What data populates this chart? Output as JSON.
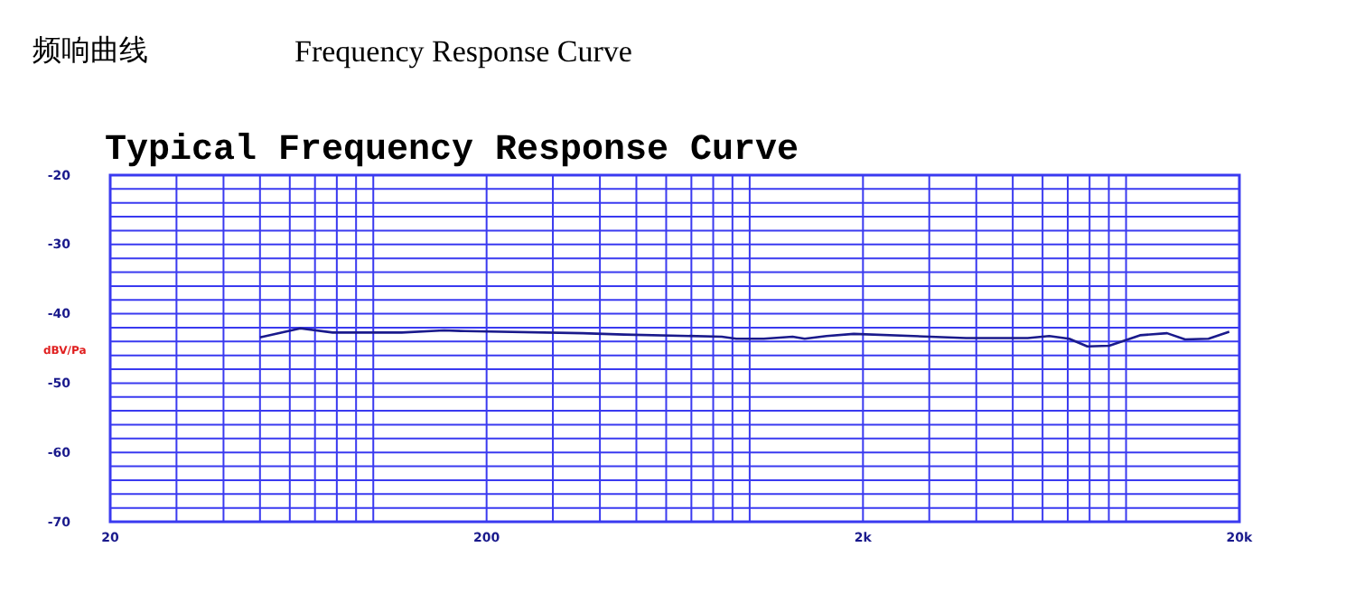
{
  "chart_data": {
    "type": "line",
    "title": "频响曲线",
    "subtitle": "Frequency Response Curve",
    "annotations": [
      "Typical Frequency Response Curve"
    ],
    "ylabel": "dBV/Pa",
    "log": "x",
    "grid": true,
    "marker": "none",
    "line_style": "solid",
    "xlim": [
      20,
      20000
    ],
    "ylim": [
      -70,
      -20
    ],
    "xticks": [
      {
        "value": 20,
        "label": "20"
      },
      {
        "value": 30,
        "label": null
      },
      {
        "value": 40,
        "label": null
      },
      {
        "value": 50,
        "label": null
      },
      {
        "value": 60,
        "label": null
      },
      {
        "value": 70,
        "label": null
      },
      {
        "value": 80,
        "label": null
      },
      {
        "value": 90,
        "label": null
      },
      {
        "value": 100,
        "label": null
      },
      {
        "value": 200,
        "label": "200"
      },
      {
        "value": 300,
        "label": null
      },
      {
        "value": 400,
        "label": null
      },
      {
        "value": 500,
        "label": null
      },
      {
        "value": 600,
        "label": null
      },
      {
        "value": 700,
        "label": null
      },
      {
        "value": 800,
        "label": null
      },
      {
        "value": 900,
        "label": null
      },
      {
        "value": 1000,
        "label": null
      },
      {
        "value": 2000,
        "label": "2k"
      },
      {
        "value": 3000,
        "label": null
      },
      {
        "value": 4000,
        "label": null
      },
      {
        "value": 5000,
        "label": null
      },
      {
        "value": 6000,
        "label": null
      },
      {
        "value": 7000,
        "label": null
      },
      {
        "value": 8000,
        "label": null
      },
      {
        "value": 9000,
        "label": null
      },
      {
        "value": 10000,
        "label": null
      },
      {
        "value": 20000,
        "label": "20k"
      }
    ],
    "yticks": [
      -70,
      {
        "value": -68,
        "label": null
      },
      {
        "value": -66,
        "label": null
      },
      {
        "value": -64,
        "label": null
      },
      {
        "value": -62,
        "label": null
      },
      -60,
      {
        "value": -58,
        "label": null
      },
      {
        "value": -56,
        "label": null
      },
      {
        "value": -54,
        "label": null
      },
      {
        "value": -52,
        "label": null
      },
      -50,
      {
        "value": -48,
        "label": null
      },
      {
        "value": -46,
        "label": null
      },
      {
        "value": -44,
        "label": null
      },
      {
        "value": -42,
        "label": null
      },
      -40,
      {
        "value": -38,
        "label": null
      },
      {
        "value": -36,
        "label": null
      },
      {
        "value": -34,
        "label": null
      },
      {
        "value": -32,
        "label": null
      },
      -30,
      {
        "value": -28,
        "label": null
      },
      {
        "value": -26,
        "label": null
      },
      {
        "value": -24,
        "label": null
      },
      {
        "value": -22,
        "label": null
      },
      -20
    ],
    "series": [
      {
        "color": "#1a1a8c",
        "x": [
          50,
          64,
          78,
          119,
          154,
          175,
          360,
          464,
          843,
          921,
          1090,
          1300,
          1400,
          1600,
          1890,
          3760,
          5480,
          6250,
          7060,
          7890,
          9020,
          10890,
          12850,
          14350,
          16560,
          18800
        ],
        "values": [
          -43.4,
          -42.1,
          -42.7,
          -42.7,
          -42.4,
          -42.5,
          -42.8,
          -43.0,
          -43.3,
          -43.6,
          -43.6,
          -43.3,
          -43.6,
          -43.2,
          -42.9,
          -43.5,
          -43.5,
          -43.2,
          -43.6,
          -44.7,
          -44.6,
          -43.1,
          -42.8,
          -43.7,
          -43.6,
          -42.6
        ]
      }
    ]
  }
}
